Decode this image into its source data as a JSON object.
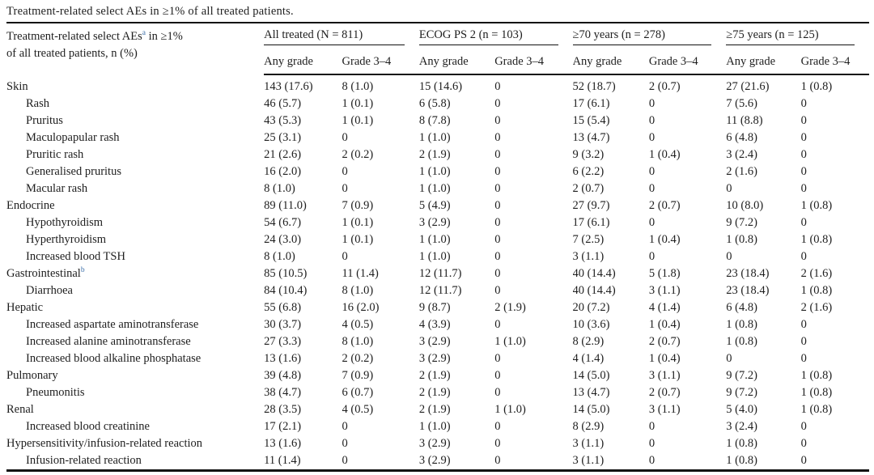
{
  "colors": {
    "text": "#1e1e1e",
    "rule": "#121212",
    "footnote_marker": "#3a6ea8",
    "background": "#ffffff"
  },
  "caption": "Treatment-related select AEs in ≥1% of all treated patients.",
  "table": {
    "header": {
      "label_line1_prefix": "Treatment-related select AEs",
      "label_line1_sup": "a",
      "label_line1_suffix": " in ≥1%",
      "label_line2": "of all treated patients, n (%)"
    },
    "groups": [
      {
        "label": "All treated (N = 811)",
        "sub": [
          "Any grade",
          "Grade 3–4"
        ]
      },
      {
        "label": "ECOG PS 2 (n = 103)",
        "sub": [
          "Any grade",
          "Grade 3–4"
        ]
      },
      {
        "label": "≥70 years (n = 278)",
        "sub": [
          "Any grade",
          "Grade 3–4"
        ]
      },
      {
        "label": "≥75 years (n = 125)",
        "sub": [
          "Any grade",
          "Grade 3–4"
        ]
      }
    ],
    "rows": [
      {
        "label": "Skin",
        "indent": 0,
        "values": [
          "143 (17.6)",
          "8 (1.0)",
          "15 (14.6)",
          "0",
          "52 (18.7)",
          "2 (0.7)",
          "27 (21.6)",
          "1 (0.8)"
        ]
      },
      {
        "label": "Rash",
        "indent": 1,
        "values": [
          "46 (5.7)",
          "1 (0.1)",
          "6 (5.8)",
          "0",
          "17 (6.1)",
          "0",
          "7 (5.6)",
          "0"
        ]
      },
      {
        "label": "Pruritus",
        "indent": 1,
        "values": [
          "43 (5.3)",
          "1 (0.1)",
          "8 (7.8)",
          "0",
          "15 (5.4)",
          "0",
          "11 (8.8)",
          "0"
        ]
      },
      {
        "label": "Maculopapular rash",
        "indent": 1,
        "values": [
          "25 (3.1)",
          "0",
          "1 (1.0)",
          "0",
          "13 (4.7)",
          "0",
          "6 (4.8)",
          "0"
        ]
      },
      {
        "label": "Pruritic rash",
        "indent": 1,
        "values": [
          "21 (2.6)",
          "2 (0.2)",
          "2 (1.9)",
          "0",
          "9 (3.2)",
          "1 (0.4)",
          "3 (2.4)",
          "0"
        ]
      },
      {
        "label": "Generalised pruritus",
        "indent": 1,
        "values": [
          "16 (2.0)",
          "0",
          "1 (1.0)",
          "0",
          "6 (2.2)",
          "0",
          "2 (1.6)",
          "0"
        ]
      },
      {
        "label": "Macular rash",
        "indent": 1,
        "values": [
          "8 (1.0)",
          "0",
          "1 (1.0)",
          "0",
          "2 (0.7)",
          "0",
          "0",
          "0"
        ]
      },
      {
        "label": "Endocrine",
        "indent": 0,
        "values": [
          "89 (11.0)",
          "7 (0.9)",
          "5 (4.9)",
          "0",
          "27 (9.7)",
          "2 (0.7)",
          "10 (8.0)",
          "1 (0.8)"
        ]
      },
      {
        "label": "Hypothyroidism",
        "indent": 1,
        "values": [
          "54 (6.7)",
          "1 (0.1)",
          "3 (2.9)",
          "0",
          "17 (6.1)",
          "0",
          "9 (7.2)",
          "0"
        ]
      },
      {
        "label": "Hyperthyroidism",
        "indent": 1,
        "values": [
          "24 (3.0)",
          "1 (0.1)",
          "1 (1.0)",
          "0",
          "7 (2.5)",
          "1 (0.4)",
          "1 (0.8)",
          "1 (0.8)"
        ]
      },
      {
        "label": "Increased blood TSH",
        "indent": 1,
        "values": [
          "8 (1.0)",
          "0",
          "1 (1.0)",
          "0",
          "3 (1.1)",
          "0",
          "0",
          "0"
        ]
      },
      {
        "label": "Gastrointestinal",
        "sup": "b",
        "indent": 0,
        "values": [
          "85 (10.5)",
          "11 (1.4)",
          "12 (11.7)",
          "0",
          "40 (14.4)",
          "5 (1.8)",
          "23 (18.4)",
          "2 (1.6)"
        ]
      },
      {
        "label": "Diarrhoea",
        "indent": 1,
        "values": [
          "84 (10.4)",
          "8 (1.0)",
          "12 (11.7)",
          "0",
          "40 (14.4)",
          "3 (1.1)",
          "23 (18.4)",
          "1 (0.8)"
        ]
      },
      {
        "label": "Hepatic",
        "indent": 0,
        "values": [
          "55 (6.8)",
          "16 (2.0)",
          "9 (8.7)",
          "2 (1.9)",
          "20 (7.2)",
          "4 (1.4)",
          "6 (4.8)",
          "2 (1.6)"
        ]
      },
      {
        "label": "Increased aspartate aminotransferase",
        "indent": 1,
        "values": [
          "30 (3.7)",
          "4 (0.5)",
          "4 (3.9)",
          "0",
          "10 (3.6)",
          "1 (0.4)",
          "1 (0.8)",
          "0"
        ]
      },
      {
        "label": "Increased alanine aminotransferase",
        "indent": 1,
        "values": [
          "27 (3.3)",
          "8 (1.0)",
          "3 (2.9)",
          "1 (1.0)",
          "8 (2.9)",
          "2 (0.7)",
          "1 (0.8)",
          "0"
        ]
      },
      {
        "label": "Increased blood alkaline phosphatase",
        "indent": 1,
        "values": [
          "13 (1.6)",
          "2 (0.2)",
          "3 (2.9)",
          "0",
          "4 (1.4)",
          "1 (0.4)",
          "0",
          "0"
        ]
      },
      {
        "label": "Pulmonary",
        "indent": 0,
        "values": [
          "39 (4.8)",
          "7 (0.9)",
          "2 (1.9)",
          "0",
          "14 (5.0)",
          "3 (1.1)",
          "9 (7.2)",
          "1 (0.8)"
        ]
      },
      {
        "label": "Pneumonitis",
        "indent": 1,
        "values": [
          "38 (4.7)",
          "6 (0.7)",
          "2 (1.9)",
          "0",
          "13 (4.7)",
          "2 (0.7)",
          "9 (7.2)",
          "1 (0.8)"
        ]
      },
      {
        "label": "Renal",
        "indent": 0,
        "values": [
          "28 (3.5)",
          "4 (0.5)",
          "2 (1.9)",
          "1 (1.0)",
          "14 (5.0)",
          "3 (1.1)",
          "5 (4.0)",
          "1 (0.8)"
        ]
      },
      {
        "label": "Increased blood creatinine",
        "indent": 1,
        "values": [
          "17 (2.1)",
          "0",
          "1 (1.0)",
          "0",
          "8 (2.9)",
          "0",
          "3 (2.4)",
          "0"
        ]
      },
      {
        "label": "Hypersensitivity/infusion-related reaction",
        "indent": 0,
        "values": [
          "13 (1.6)",
          "0",
          "3 (2.9)",
          "0",
          "3 (1.1)",
          "0",
          "1 (0.8)",
          "0"
        ]
      },
      {
        "label": "Infusion-related reaction",
        "indent": 1,
        "values": [
          "11 (1.4)",
          "0",
          "3 (2.9)",
          "0",
          "3 (1.1)",
          "0",
          "1 (0.8)",
          "0"
        ]
      }
    ]
  }
}
